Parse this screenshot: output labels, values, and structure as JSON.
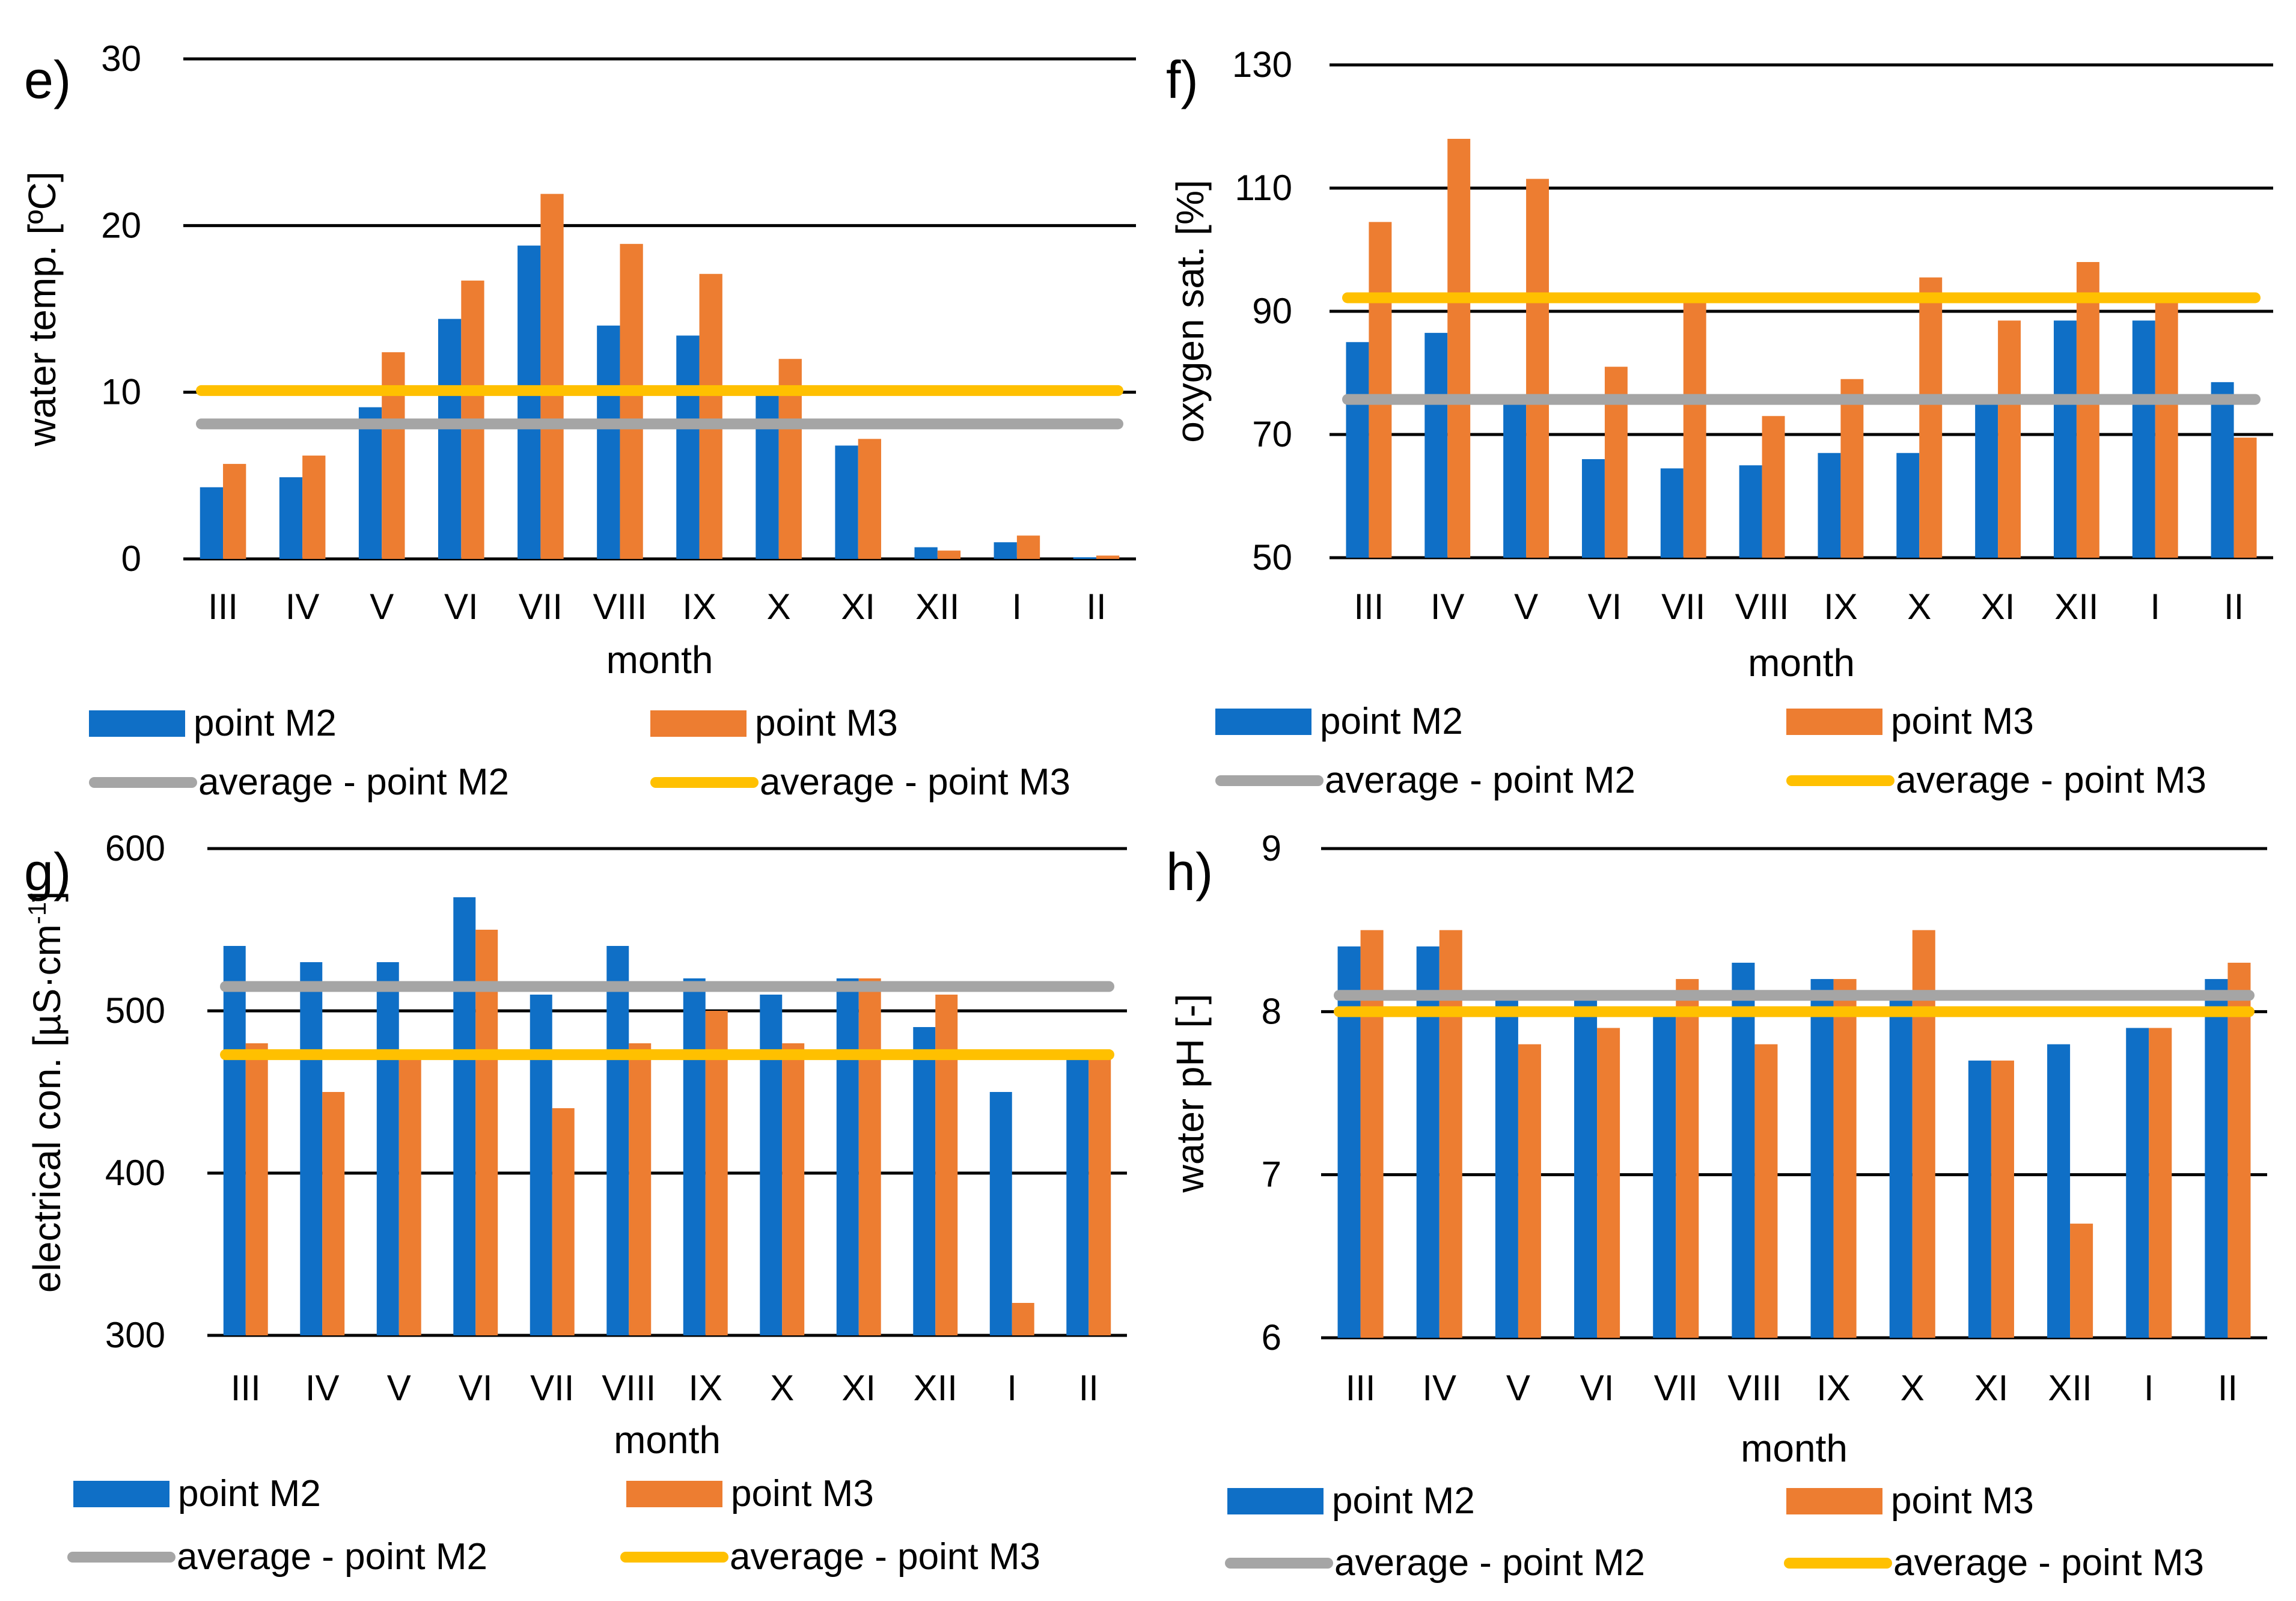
{
  "colors": {
    "m2": "#0F6FC6",
    "m3": "#ED7D31",
    "avg_m2": "#A5A5A5",
    "avg_m3": "#FFC000",
    "grid": "#000000"
  },
  "legend": {
    "bar_m2": "point M2",
    "bar_m3": "point M3",
    "avg_m2": "average - point M2",
    "avg_m3": "average - point M3"
  },
  "chart_data": [
    {
      "id": "e",
      "panel_label": "e)",
      "type": "bar",
      "ylabel": "water temp. [ºC]",
      "xlabel": "month",
      "ylim": [
        0,
        30
      ],
      "yticks": [
        0,
        10,
        20,
        30
      ],
      "categories": [
        "III",
        "IV",
        "V",
        "VI",
        "VII",
        "VIII",
        "IX",
        "X",
        "XI",
        "XII",
        "I",
        "II"
      ],
      "series": [
        {
          "name": "point M2",
          "values": [
            4.3,
            4.9,
            9.1,
            14.4,
            18.8,
            14.0,
            13.4,
            9.8,
            6.8,
            0.7,
            1.0,
            0.1
          ]
        },
        {
          "name": "point M3",
          "values": [
            5.7,
            6.2,
            12.4,
            16.7,
            21.9,
            18.9,
            17.1,
            12.0,
            7.2,
            0.5,
            1.4,
            0.2
          ]
        }
      ],
      "averages": [
        {
          "name": "average - point M2",
          "value": 8.1
        },
        {
          "name": "average - point M3",
          "value": 10.1
        }
      ]
    },
    {
      "id": "f",
      "panel_label": "f)",
      "type": "bar",
      "ylabel": "oxygen sat. [%]",
      "xlabel": "month",
      "ylim": [
        50,
        130
      ],
      "yticks": [
        50,
        70,
        90,
        110,
        130
      ],
      "categories": [
        "III",
        "IV",
        "V",
        "VI",
        "VII",
        "VIII",
        "IX",
        "X",
        "XI",
        "XII",
        "I",
        "II"
      ],
      "series": [
        {
          "name": "point M2",
          "values": [
            85,
            86.5,
            75.5,
            66,
            64.5,
            65,
            67,
            67,
            75,
            88.5,
            88.5,
            78.5
          ]
        },
        {
          "name": "point M3",
          "values": [
            104.5,
            118,
            111.5,
            81,
            91.5,
            73,
            79,
            95.5,
            88.5,
            98,
            93,
            69.5
          ]
        }
      ],
      "averages": [
        {
          "name": "average - point M2",
          "value": 75.7
        },
        {
          "name": "average - point M3",
          "value": 92.2
        }
      ]
    },
    {
      "id": "g",
      "panel_label": "g)",
      "type": "bar",
      "ylabel": "electrical con. [µS·cm",
      "ylabel_sup": "-1",
      "ylabel_end": "]",
      "xlabel": "month",
      "ylim": [
        300,
        600
      ],
      "yticks": [
        300,
        400,
        500,
        600
      ],
      "categories": [
        "III",
        "IV",
        "V",
        "VI",
        "VII",
        "VIII",
        "IX",
        "X",
        "XI",
        "XII",
        "I",
        "II"
      ],
      "series": [
        {
          "name": "point M2",
          "values": [
            540,
            530,
            530,
            570,
            510,
            540,
            520,
            510,
            520,
            490,
            450,
            470
          ]
        },
        {
          "name": "point M3",
          "values": [
            480,
            450,
            470,
            550,
            440,
            480,
            500,
            480,
            520,
            510,
            320,
            470
          ]
        }
      ],
      "averages": [
        {
          "name": "average - point M2",
          "value": 515
        },
        {
          "name": "average - point M3",
          "value": 473
        }
      ]
    },
    {
      "id": "h",
      "panel_label": "h)",
      "type": "bar",
      "ylabel": "water pH [-]",
      "xlabel": "month",
      "ylim": [
        6,
        9
      ],
      "yticks": [
        6,
        7,
        8,
        9
      ],
      "categories": [
        "III",
        "IV",
        "V",
        "VI",
        "VII",
        "VIII",
        "IX",
        "X",
        "XI",
        "XII",
        "I",
        "II"
      ],
      "series": [
        {
          "name": "point M2",
          "values": [
            8.4,
            8.4,
            8.1,
            8.1,
            8.0,
            8.3,
            8.2,
            8.1,
            7.7,
            7.8,
            7.9,
            8.2
          ]
        },
        {
          "name": "point M3",
          "values": [
            8.5,
            8.5,
            7.8,
            7.9,
            8.2,
            7.8,
            8.2,
            8.5,
            7.7,
            6.7,
            7.9,
            8.3
          ]
        }
      ],
      "averages": [
        {
          "name": "average - point M2",
          "value": 8.1
        },
        {
          "name": "average - point M3",
          "value": 8.0
        }
      ]
    }
  ]
}
